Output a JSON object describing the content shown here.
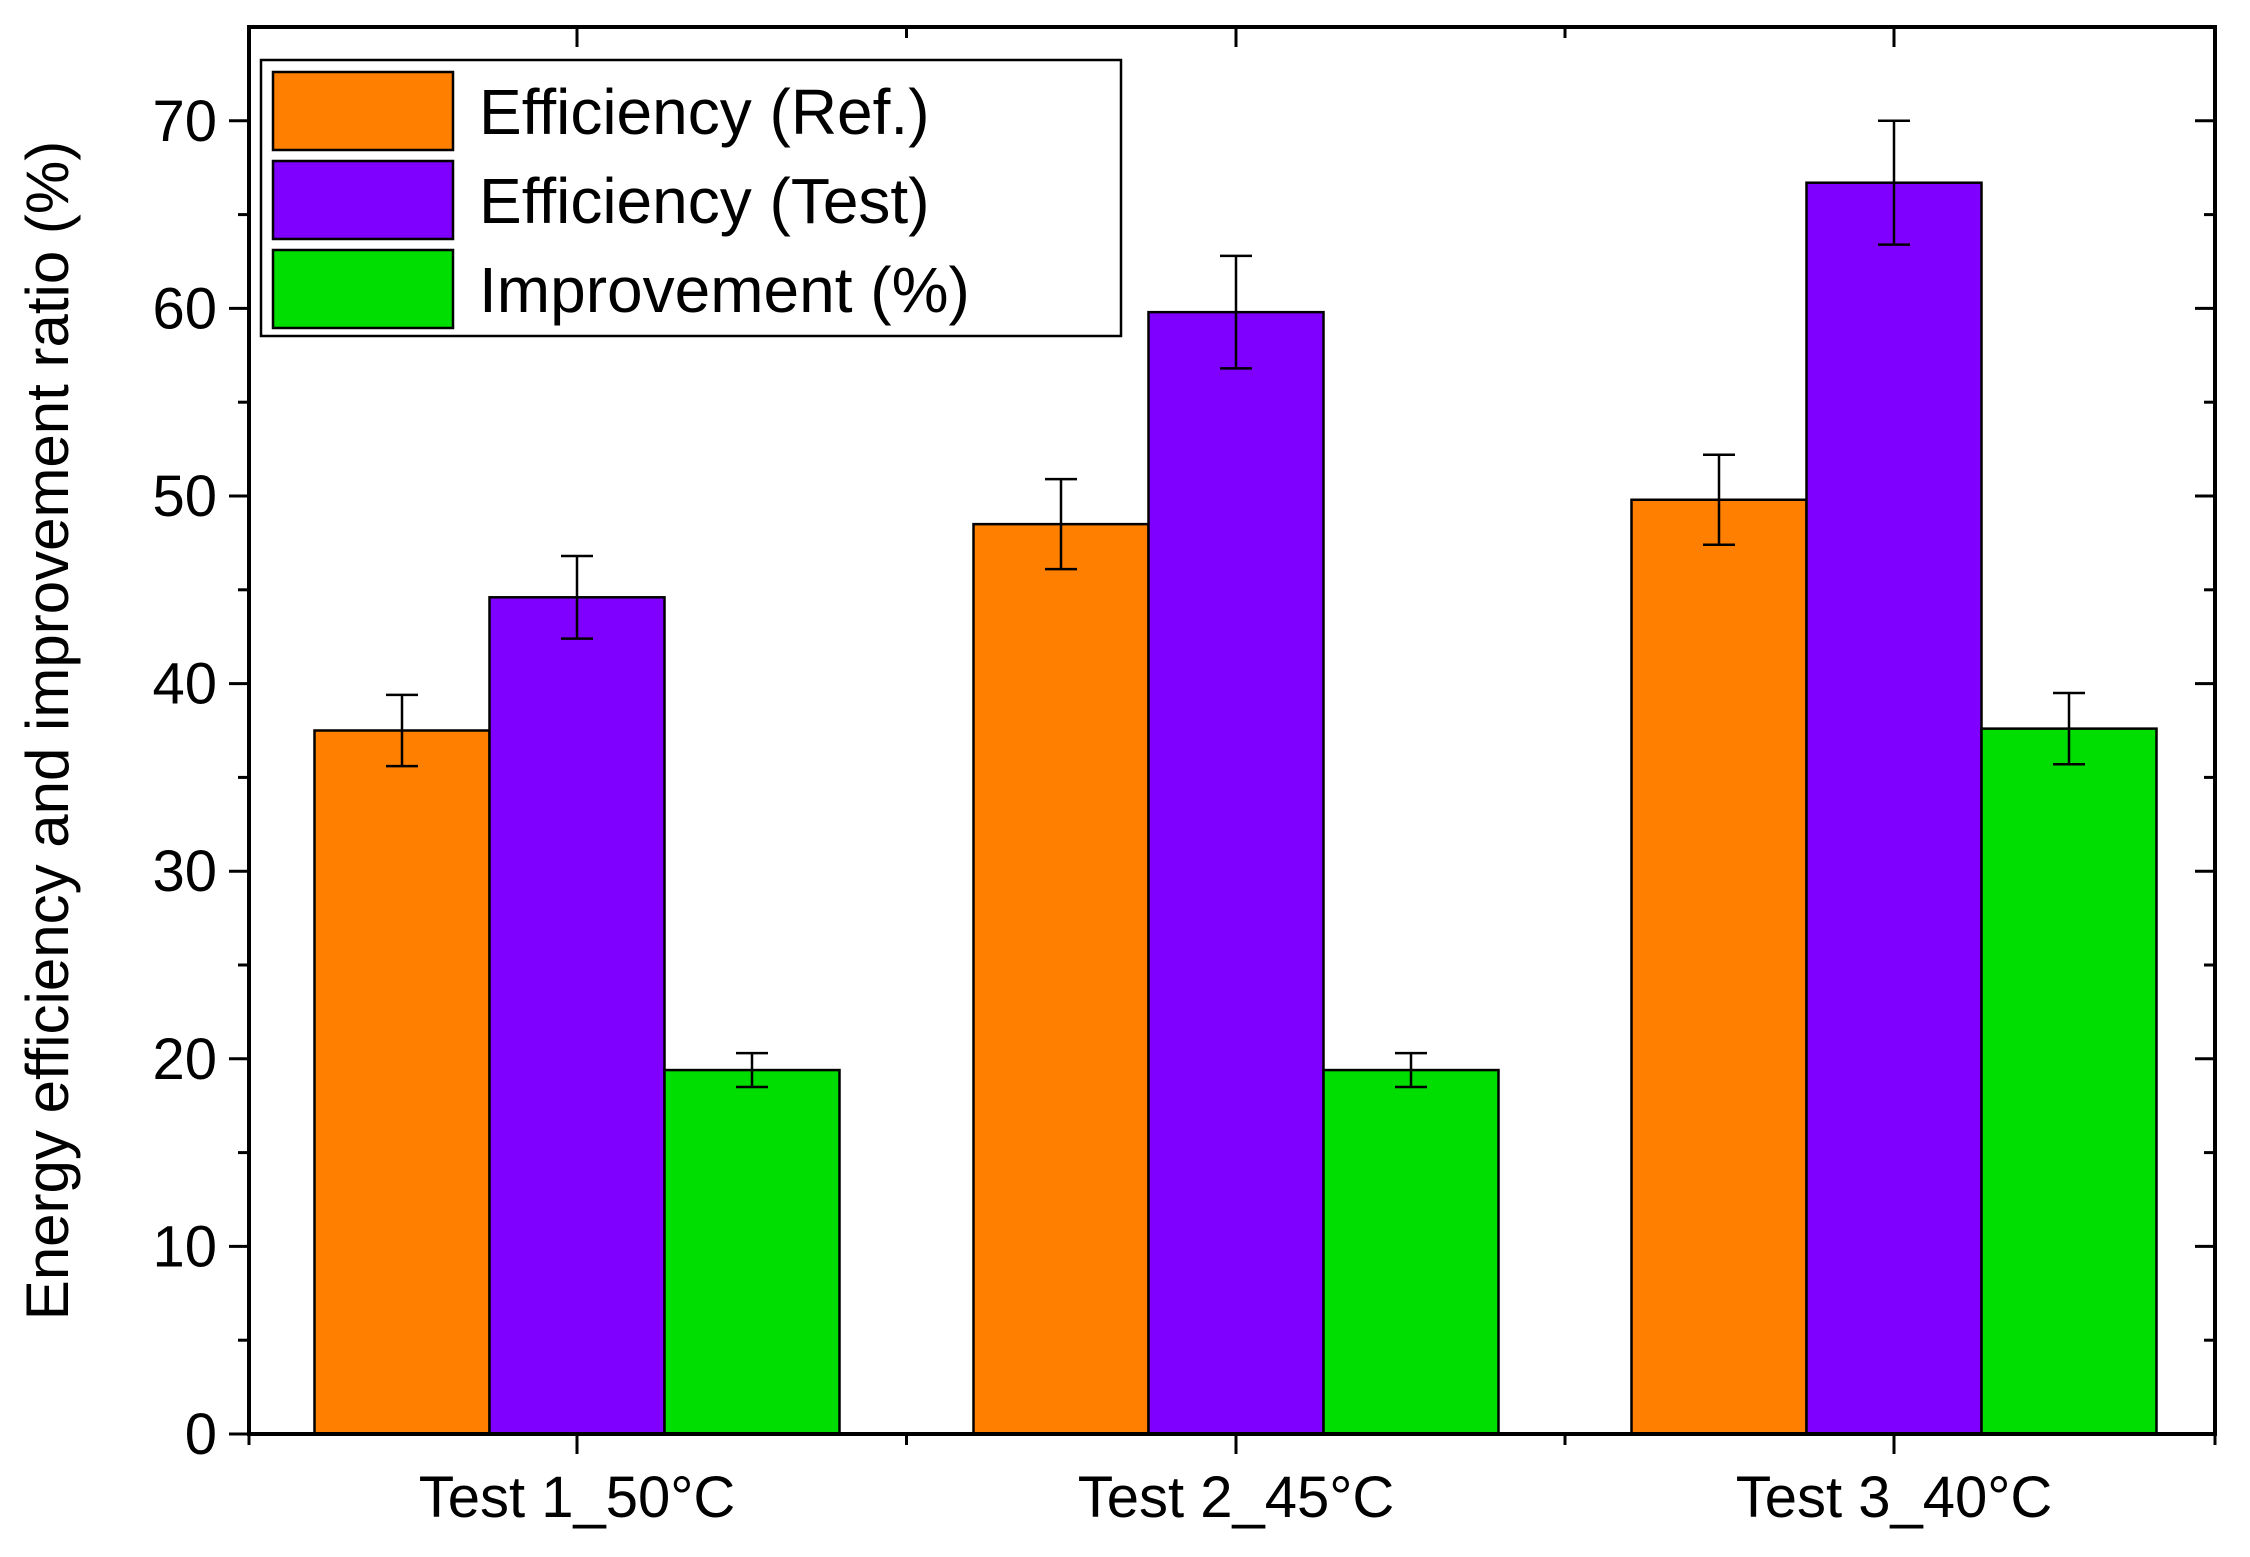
{
  "chart_data": {
    "type": "bar",
    "title": "",
    "xlabel": "",
    "ylabel": "Energy efficiency and improvement ratio (%)",
    "ylim": [
      0,
      75
    ],
    "yticks": [
      0,
      10,
      20,
      30,
      40,
      50,
      60,
      70
    ],
    "categories": [
      "Test 1_50°C",
      "Test 2_45°C",
      "Test 3_40°C"
    ],
    "grid": false,
    "legend_position": "top-left",
    "series": [
      {
        "name": "Efficiency (Ref.)",
        "color": "#ff7f00",
        "values": [
          37.5,
          48.5,
          49.8
        ],
        "errors": [
          1.9,
          2.4,
          2.4
        ]
      },
      {
        "name": "Efficiency (Test)",
        "color": "#7f00ff",
        "values": [
          44.6,
          59.8,
          66.7
        ],
        "errors": [
          2.2,
          3.0,
          3.3
        ]
      },
      {
        "name": "Improvement (%)",
        "color": "#00dd00",
        "values": [
          19.4,
          19.4,
          37.6
        ],
        "errors": [
          0.9,
          0.9,
          1.9
        ]
      }
    ]
  }
}
